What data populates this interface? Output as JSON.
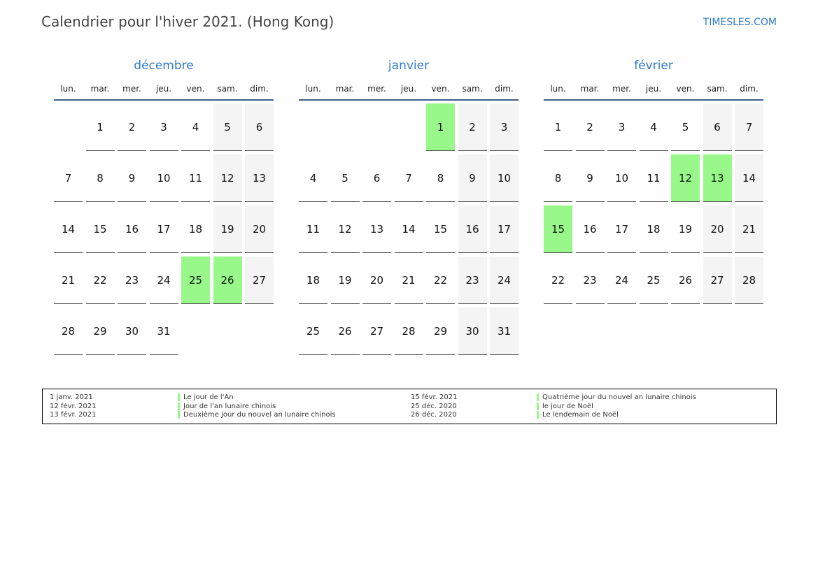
{
  "title": "Calendrier pour l'hiver 2021. (Hong Kong)",
  "brand": "TIMESLES.COM",
  "colors": {
    "accent": "#2f7bc4",
    "holiday": "#98f98a",
    "weekend": "#f4f4f4"
  },
  "weekdays": [
    "lun.",
    "mar.",
    "mer.",
    "jeu.",
    "ven.",
    "sam.",
    "dim."
  ],
  "months": [
    {
      "name": "décembre",
      "offset": 1,
      "days": 31,
      "holidays": [
        25,
        26
      ]
    },
    {
      "name": "janvier",
      "offset": 4,
      "days": 31,
      "holidays": [
        1
      ]
    },
    {
      "name": "février",
      "offset": 0,
      "days": 28,
      "holidays": [
        12,
        13,
        15
      ]
    }
  ],
  "legend": [
    {
      "date": "1 janv. 2021",
      "name": "Le jour de l'An"
    },
    {
      "date": "12 févr. 2021",
      "name": "Jour de l'an lunaire chinois"
    },
    {
      "date": "13 févr. 2021",
      "name": "Deuxième jour du nouvel an lunaire chinois"
    },
    {
      "date": "15 févr. 2021",
      "name": "Quatrième jour du nouvel an lunaire chinois"
    },
    {
      "date": "25 déc. 2020",
      "name": "le jour de Noël"
    },
    {
      "date": "26 déc. 2020",
      "name": "Le lendemain de Noël"
    }
  ]
}
